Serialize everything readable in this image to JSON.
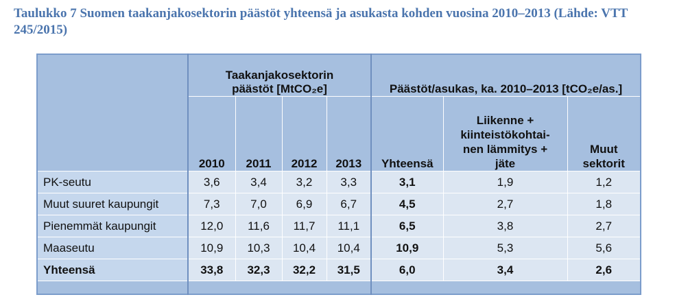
{
  "caption": {
    "title": "Taulukko 7 Suomen taakanjakosektorin päästöt yhteensä ja asukasta kohden vuosina 2010–2013 (Lähde: VTT 245/2015)"
  },
  "table": {
    "group_headers": [
      "Taakanjakosektorin päästöt [MtCO₂e]",
      "Päästöt/asukas, ka. 2010–2013 [tCO₂e/as.]"
    ],
    "columns": [
      "2010",
      "2011",
      "2012",
      "2013",
      "Yhteensä",
      [
        "Liikenne +",
        "kiinteistökohtai-",
        "nen lämmitys +",
        "jäte"
      ],
      [
        "Muut",
        "sektorit"
      ]
    ],
    "rows": [
      [
        "PK-seutu",
        "3,6",
        "3,4",
        "3,2",
        "3,3",
        "3,1",
        "1,9",
        "1,2"
      ],
      [
        "Muut suuret kaupungit",
        "7,3",
        "7,0",
        "6,9",
        "6,7",
        "4,5",
        "2,7",
        "1,8"
      ],
      [
        "Pienemmät kaupungit",
        "12,0",
        "11,6",
        "11,7",
        "11,1",
        "6,5",
        "3,8",
        "2,7"
      ],
      [
        "Maaseutu",
        "10,9",
        "10,3",
        "10,4",
        "10,4",
        "10,9",
        "5,3",
        "5,6"
      ],
      [
        "Yhteensä",
        "33,8",
        "32,3",
        "32,2",
        "31,5",
        "6,0",
        "3,4",
        "2,6"
      ]
    ]
  }
}
